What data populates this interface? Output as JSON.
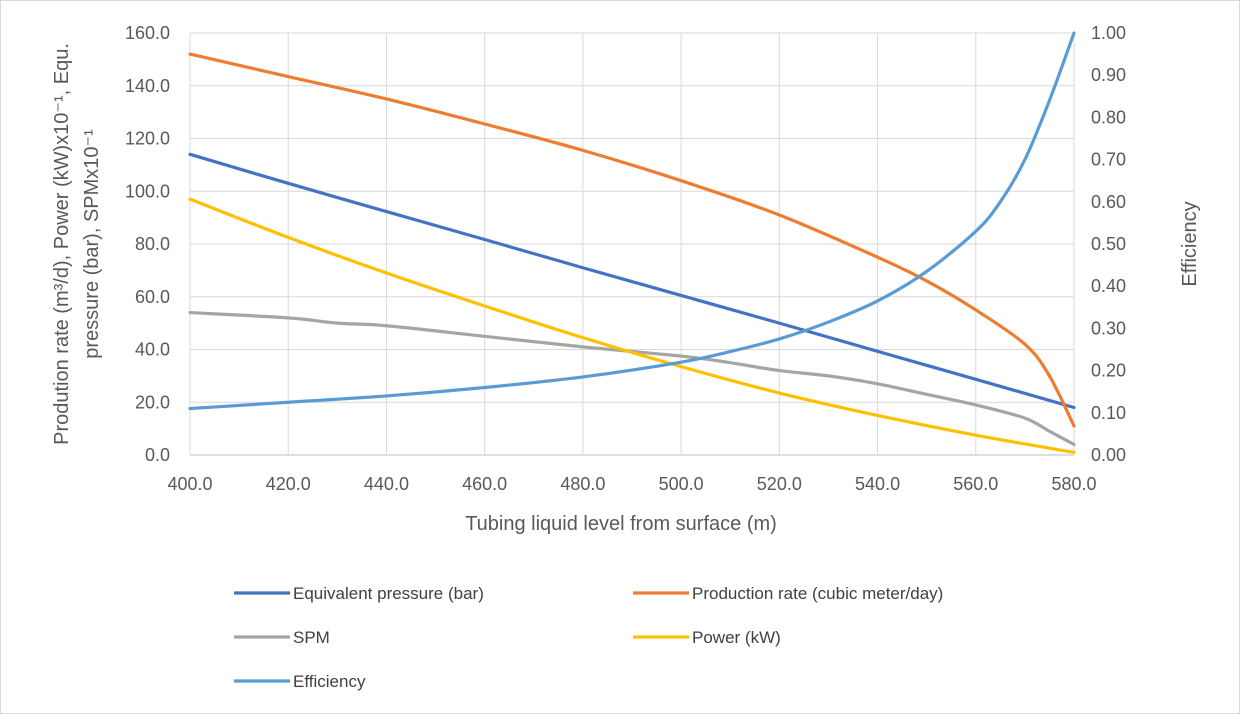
{
  "chart_data": {
    "type": "line",
    "x_axis": {
      "label": "Tubing liquid level from surface (m)",
      "range": [
        400,
        580
      ],
      "ticks": [
        "400.0",
        "420.0",
        "440.0",
        "460.0",
        "480.0",
        "500.0",
        "520.0",
        "540.0",
        "560.0",
        "580.0"
      ]
    },
    "y_axis_left": {
      "label_line1": "Prodution rate  (m³/d), Power (kW)x10⁻¹, Equ.",
      "label_line2": "pressure (bar), SPMx10⁻¹",
      "range": [
        0,
        160
      ],
      "ticks": [
        "0.0",
        "20.0",
        "40.0",
        "60.0",
        "80.0",
        "100.0",
        "120.0",
        "140.0",
        "160.0"
      ]
    },
    "y_axis_right": {
      "label": "Efficiency",
      "range": [
        0,
        1
      ],
      "ticks": [
        "0.00",
        "0.10",
        "0.20",
        "0.30",
        "0.40",
        "0.50",
        "0.60",
        "0.70",
        "0.80",
        "0.90",
        "1.00"
      ]
    },
    "grid": "vertical and horizontal major gridlines",
    "legend_position": "bottom",
    "series": [
      {
        "name": "Equivalent pressure (bar)",
        "axis": "left",
        "color": "#4472c4",
        "x": [
          400,
          420,
          440,
          460,
          480,
          500,
          520,
          540,
          560,
          580
        ],
        "y": [
          114,
          103,
          92.3,
          81.7,
          71,
          60.5,
          50,
          39.3,
          28.7,
          18
        ]
      },
      {
        "name": "Production rate (cubic meter/day)",
        "axis": "left",
        "color": "#ed7d31",
        "x": [
          400,
          420,
          440,
          460,
          480,
          500,
          520,
          540,
          550,
          560,
          570,
          575,
          580
        ],
        "y": [
          152,
          143.5,
          135,
          125.5,
          115.5,
          104,
          91,
          75,
          66,
          55,
          42,
          30,
          11
        ]
      },
      {
        "name": "SPM",
        "axis": "left",
        "color": "#a5a5a5",
        "x": [
          400,
          420,
          430,
          440,
          460,
          480,
          500,
          510,
          520,
          530,
          540,
          550,
          560,
          570,
          575,
          580
        ],
        "y": [
          54,
          52,
          50,
          49,
          45,
          41,
          37.5,
          35,
          32,
          30,
          27,
          23,
          19,
          14,
          9,
          4
        ]
      },
      {
        "name": "Power (kW)",
        "axis": "left",
        "color": "#ffc000",
        "x": [
          400,
          420,
          440,
          460,
          480,
          500,
          520,
          540,
          560,
          580
        ],
        "y": [
          97,
          82.5,
          69,
          56.5,
          44.5,
          33.5,
          23.5,
          15,
          7.5,
          1
        ]
      },
      {
        "name": "Efficiency",
        "axis": "right",
        "color": "#5b9bd5",
        "x": [
          400,
          420,
          440,
          460,
          480,
          500,
          510,
          520,
          530,
          540,
          550,
          560,
          565,
          570,
          575,
          580
        ],
        "y": [
          0.11,
          0.125,
          0.14,
          0.16,
          0.185,
          0.22,
          0.245,
          0.275,
          0.315,
          0.365,
          0.435,
          0.53,
          0.6,
          0.7,
          0.84,
          1.0
        ]
      }
    ]
  }
}
